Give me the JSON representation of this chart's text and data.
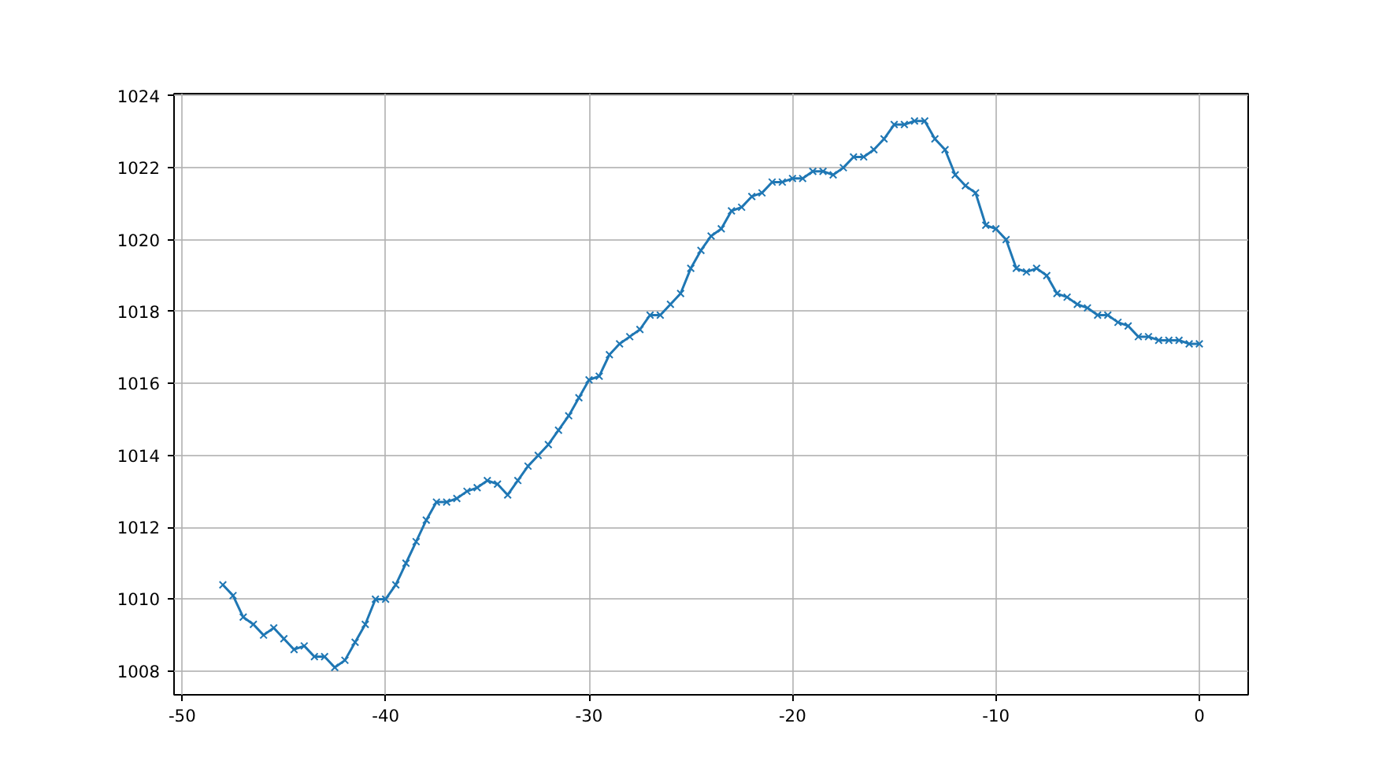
{
  "chart_data": {
    "type": "line",
    "marker": "cross",
    "line_style": "solid",
    "grid": true,
    "xlim": [
      -50.4,
      2.4
    ],
    "ylim": [
      1007.34,
      1024.06
    ],
    "xticks": [
      -50,
      -40,
      -30,
      -20,
      -10,
      0
    ],
    "yticks": [
      1008,
      1010,
      1012,
      1014,
      1016,
      1018,
      1020,
      1022,
      1024
    ],
    "x": [
      -48,
      -47.5,
      -47,
      -46.5,
      -46,
      -45.5,
      -45,
      -44.5,
      -44,
      -43.5,
      -43,
      -42.5,
      -42,
      -41.5,
      -41,
      -40.5,
      -40,
      -39.5,
      -39,
      -38.5,
      -38,
      -37.5,
      -37,
      -36.5,
      -36,
      -35.5,
      -35,
      -34.5,
      -34,
      -33.5,
      -33,
      -32.5,
      -32,
      -31.5,
      -31,
      -30.5,
      -30,
      -29.5,
      -29,
      -28.5,
      -28,
      -27.5,
      -27,
      -26.5,
      -26,
      -25.5,
      -25,
      -24.5,
      -24,
      -23.5,
      -23,
      -22.5,
      -22,
      -21.5,
      -21,
      -20.5,
      -20,
      -19.5,
      -19,
      -18.5,
      -18,
      -17.5,
      -17,
      -16.5,
      -16,
      -15.5,
      -15,
      -14.5,
      -14,
      -13.5,
      -13,
      -12.5,
      -12,
      -11.5,
      -11,
      -10.5,
      -10,
      -9.5,
      -9,
      -8.5,
      -8,
      -7.5,
      -7,
      -6.5,
      -6,
      -5.5,
      -5,
      -4.5,
      -4,
      -3.5,
      -3,
      -2.5,
      -2,
      -1.5,
      -1,
      -0.5,
      0
    ],
    "series": [
      {
        "color": "#1f77b4",
        "values": [
          1010.4,
          1010.1,
          1009.5,
          1009.3,
          1009.0,
          1009.2,
          1008.9,
          1008.6,
          1008.7,
          1008.4,
          1008.4,
          1008.1,
          1008.3,
          1008.8,
          1009.3,
          1010.0,
          1010.0,
          1010.4,
          1011.0,
          1011.6,
          1012.2,
          1012.7,
          1012.7,
          1012.8,
          1013.0,
          1013.1,
          1013.3,
          1013.2,
          1012.9,
          1013.3,
          1013.7,
          1014.0,
          1014.3,
          1014.7,
          1015.1,
          1015.6,
          1016.1,
          1016.2,
          1016.8,
          1017.1,
          1017.3,
          1017.5,
          1017.9,
          1017.9,
          1018.2,
          1018.5,
          1019.2,
          1019.7,
          1020.1,
          1020.3,
          1020.8,
          1020.9,
          1021.2,
          1021.3,
          1021.6,
          1021.6,
          1021.7,
          1021.7,
          1021.9,
          1021.9,
          1021.8,
          1022.0,
          1022.3,
          1022.3,
          1022.5,
          1022.8,
          1023.2,
          1023.2,
          1023.3,
          1023.3,
          1022.8,
          1022.5,
          1021.8,
          1021.5,
          1021.3,
          1020.4,
          1020.3,
          1020.0,
          1019.2,
          1019.1,
          1019.2,
          1019.0,
          1018.5,
          1018.4,
          1018.2,
          1018.1,
          1017.9,
          1017.9,
          1017.7,
          1017.6,
          1017.3,
          1017.3,
          1017.2,
          1017.2,
          1017.2,
          1017.1,
          1017.1
        ]
      }
    ]
  }
}
